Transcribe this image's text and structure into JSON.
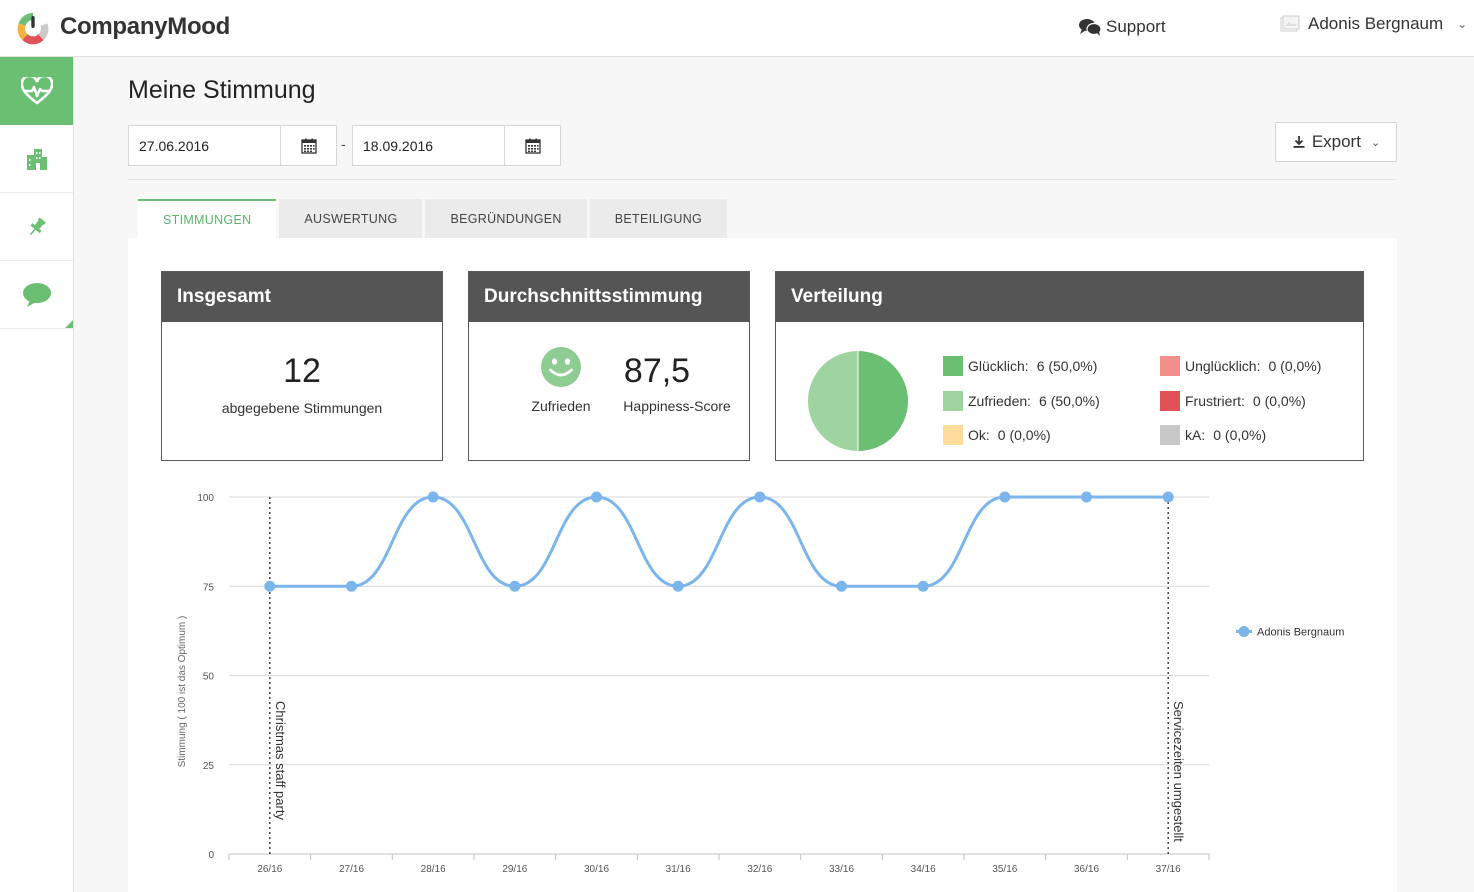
{
  "header": {
    "brand": "CompanyMood",
    "support_label": "Support",
    "user_name": "Adonis Bergnaum"
  },
  "page": {
    "title": "Meine Stimmung",
    "date_from": "27.06.2016",
    "date_separator": "-",
    "date_to": "18.09.2016",
    "export_label": "Export"
  },
  "tabs": [
    {
      "label": "STIMMUNGEN",
      "active": true
    },
    {
      "label": "AUSWERTUNG",
      "active": false
    },
    {
      "label": "BEGRÜNDUNGEN",
      "active": false
    },
    {
      "label": "BETEILIGUNG",
      "active": false
    }
  ],
  "cards": {
    "total": {
      "title": "Insgesamt",
      "value": "12",
      "caption": "abgegebene Stimmungen"
    },
    "average": {
      "title": "Durchschnittsstimmung",
      "mood_label": "Zufrieden",
      "score": "87,5",
      "score_label": "Happiness-Score"
    },
    "distribution": {
      "title": "Verteilung",
      "items": [
        {
          "label": "Glücklich:",
          "value": "6 (50,0%)",
          "color": "#6abf72"
        },
        {
          "label": "Zufrieden:",
          "value": "6 (50,0%)",
          "color": "#9fd3a0"
        },
        {
          "label": "Ok:",
          "value": "0 (0,0%)",
          "color": "#fddc9c"
        },
        {
          "label": "Unglücklich:",
          "value": "0 (0,0%)",
          "color": "#f1908a"
        },
        {
          "label": "Frustriert:",
          "value": "0 (0,0%)",
          "color": "#e25157"
        },
        {
          "label": "kA:",
          "value": "0 (0,0%)",
          "color": "#c8c8c8"
        }
      ],
      "pie": [
        50,
        50
      ]
    }
  },
  "chart_data": {
    "type": "line",
    "ylabel": "Stimmung ( 100 ist das Optimum )",
    "xlabel": "",
    "ylim": [
      0,
      100
    ],
    "yticks": [
      0,
      25,
      50,
      75,
      100
    ],
    "categories": [
      "26/16",
      "27/16",
      "28/16",
      "29/16",
      "30/16",
      "31/16",
      "32/16",
      "33/16",
      "34/16",
      "35/16",
      "36/16",
      "37/16"
    ],
    "series": [
      {
        "name": "Adonis Bergnaum",
        "color": "#7cb5ec",
        "values": [
          75,
          75,
          100,
          75,
          100,
          75,
          100,
          75,
          75,
          100,
          100,
          100
        ]
      }
    ],
    "annotations": [
      {
        "x": "26/16",
        "label": "Christmas staff party"
      },
      {
        "x": "37/16",
        "label": "Servicezeiten umgestellt"
      }
    ],
    "grid": true,
    "legend": "right"
  }
}
